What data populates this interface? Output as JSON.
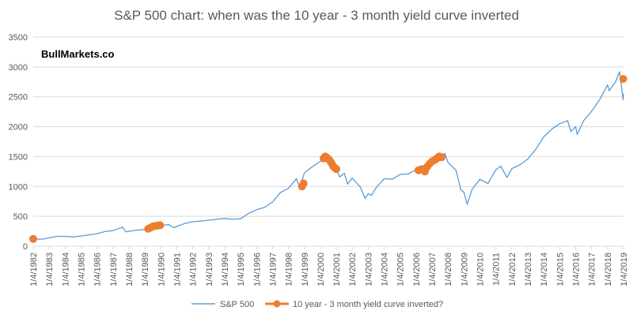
{
  "chart_data": {
    "type": "line",
    "title": "S&P 500 chart: when was the 10 year - 3 month yield curve inverted",
    "watermark": "BullMarkets.co",
    "xlabel": "",
    "ylabel": "",
    "ylim": [
      0,
      3500
    ],
    "yticks": [
      0,
      500,
      1000,
      1500,
      2000,
      2500,
      3000,
      3500
    ],
    "xlim": [
      1982,
      2019
    ],
    "xtick_labels": [
      "1/4/1982",
      "1/4/1983",
      "1/4/1984",
      "1/4/1985",
      "1/4/1986",
      "1/4/1987",
      "1/4/1988",
      "1/4/1989",
      "1/4/1990",
      "1/4/1991",
      "1/4/1992",
      "1/4/1993",
      "1/4/1994",
      "1/4/1995",
      "1/4/1996",
      "1/4/1997",
      "1/4/1998",
      "1/4/1999",
      "1/4/2000",
      "1/4/2001",
      "1/4/2002",
      "1/4/2003",
      "1/4/2004",
      "1/4/2005",
      "1/4/2006",
      "1/4/2007",
      "1/4/2008",
      "1/4/2009",
      "1/4/2010",
      "1/4/2011",
      "1/4/2012",
      "1/4/2013",
      "1/4/2014",
      "1/4/2015",
      "1/4/2016",
      "1/4/2017",
      "1/4/2018",
      "1/4/2019"
    ],
    "grid": "horizontal",
    "legend_position": "bottom",
    "series": [
      {
        "name": "S&P 500",
        "color": "#5b9bd5",
        "style": "line",
        "x": [
          1982.0,
          1982.6,
          1983.0,
          1983.5,
          1984.0,
          1984.5,
          1985.0,
          1985.5,
          1986.0,
          1986.5,
          1987.0,
          1987.6,
          1987.8,
          1988.0,
          1988.5,
          1989.0,
          1989.5,
          1990.0,
          1990.5,
          1990.8,
          1991.0,
          1991.5,
          1992.0,
          1992.5,
          1993.0,
          1993.5,
          1994.0,
          1994.5,
          1995.0,
          1995.5,
          1996.0,
          1996.5,
          1997.0,
          1997.5,
          1998.0,
          1998.5,
          1998.7,
          1999.0,
          1999.5,
          2000.0,
          2000.2,
          2000.5,
          2000.7,
          2001.0,
          2001.2,
          2001.5,
          2001.7,
          2002.0,
          2002.5,
          2002.8,
          2003.0,
          2003.2,
          2003.5,
          2004.0,
          2004.5,
          2005.0,
          2005.5,
          2006.0,
          2006.5,
          2007.0,
          2007.5,
          2007.8,
          2008.0,
          2008.5,
          2008.8,
          2009.0,
          2009.2,
          2009.5,
          2010.0,
          2010.5,
          2011.0,
          2011.3,
          2011.7,
          2012.0,
          2012.5,
          2013.0,
          2013.5,
          2014.0,
          2014.5,
          2015.0,
          2015.5,
          2015.7,
          2016.0,
          2016.1,
          2016.5,
          2017.0,
          2017.5,
          2018.0,
          2018.1,
          2018.5,
          2018.75,
          2018.98,
          2019.0
        ],
        "y": [
          122,
          118,
          140,
          165,
          165,
          155,
          170,
          190,
          210,
          245,
          260,
          320,
          240,
          250,
          270,
          280,
          340,
          350,
          360,
          310,
          330,
          380,
          410,
          420,
          435,
          450,
          465,
          450,
          460,
          550,
          610,
          650,
          740,
          900,
          970,
          1130,
          980,
          1230,
          1330,
          1420,
          1450,
          1460,
          1430,
          1300,
          1160,
          1220,
          1040,
          1140,
          990,
          800,
          880,
          850,
          980,
          1130,
          1120,
          1200,
          1210,
          1280,
          1270,
          1410,
          1490,
          1550,
          1400,
          1270,
          950,
          900,
          700,
          950,
          1120,
          1050,
          1280,
          1340,
          1150,
          1300,
          1360,
          1460,
          1620,
          1830,
          1960,
          2050,
          2100,
          1920,
          2000,
          1870,
          2100,
          2260,
          2450,
          2700,
          2600,
          2750,
          2920,
          2450,
          2550
        ]
      },
      {
        "name": "10 year - 3 month yield curve inverted?",
        "color": "#ed7d31",
        "style": "markers",
        "x": [
          1982.0,
          1989.2,
          1989.35,
          1989.5,
          1989.65,
          1989.8,
          1989.95,
          1998.85,
          1998.95,
          2000.2,
          2000.3,
          2000.4,
          2000.5,
          2000.6,
          2000.7,
          2000.8,
          2000.9,
          2001.0,
          2006.15,
          2006.35,
          2006.55,
          2006.7,
          2006.85,
          2007.0,
          2007.15,
          2007.3,
          2007.45,
          2007.6,
          2018.98
        ],
        "y": [
          122,
          290,
          310,
          330,
          340,
          345,
          350,
          1000,
          1050,
          1470,
          1500,
          1480,
          1460,
          1430,
          1390,
          1340,
          1310,
          1290,
          1270,
          1290,
          1250,
          1330,
          1380,
          1420,
          1440,
          1470,
          1500,
          1490,
          2800
        ]
      }
    ]
  }
}
